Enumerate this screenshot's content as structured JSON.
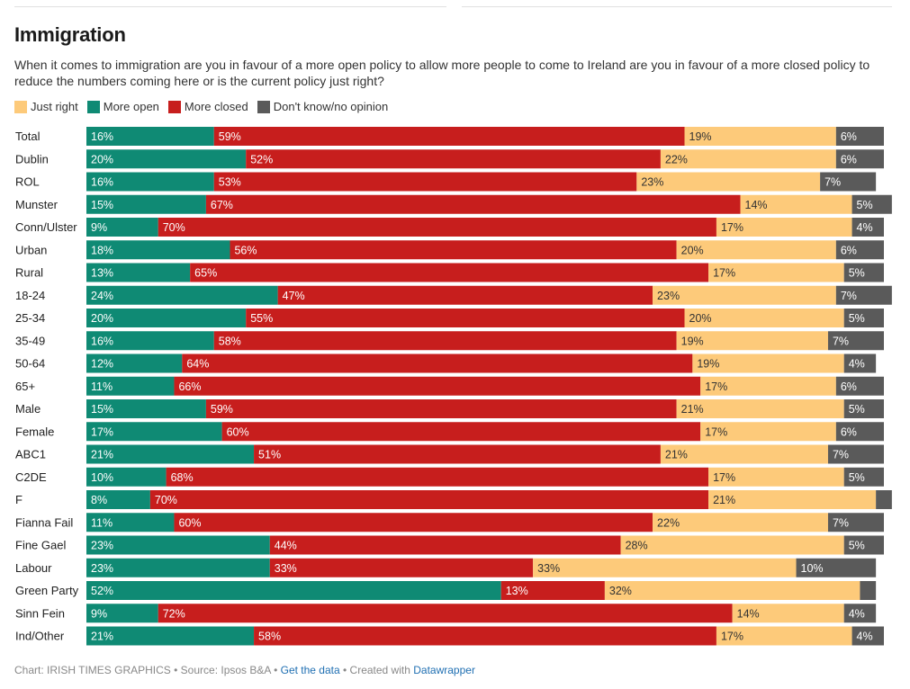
{
  "title": "Immigration",
  "subtitle": "When it comes to immigration are you in favour of a more open policy to allow more people to come to Ireland are you in favour of a more closed policy to reduce the numbers coming here or is the current policy just right?",
  "legend": [
    {
      "label": "Just right",
      "color": "#fdca7a"
    },
    {
      "label": "More open",
      "color": "#0f8a74"
    },
    {
      "label": "More closed",
      "color": "#c71e1d"
    },
    {
      "label": "Don't know/no opinion",
      "color": "#5a5a5a"
    }
  ],
  "chart_data": {
    "type": "bar",
    "orientation": "horizontal",
    "stacked": true,
    "categories": [
      "Total",
      "Dublin",
      "ROL",
      "Munster",
      "Conn/Ulster",
      "Urban",
      "Rural",
      "18-24",
      "25-34",
      "35-49",
      "50-64",
      "65+",
      "Male",
      "Female",
      "ABC1",
      "C2DE",
      "F",
      "Fianna Fail",
      "Fine Gael",
      "Labour",
      "Green Party",
      "Sinn Fein",
      "Ind/Other"
    ],
    "series": [
      {
        "name": "More open",
        "color": "#0f8a74",
        "values": [
          16,
          20,
          16,
          15,
          9,
          18,
          13,
          24,
          20,
          16,
          12,
          11,
          15,
          17,
          21,
          10,
          8,
          11,
          23,
          23,
          52,
          9,
          21
        ]
      },
      {
        "name": "More closed",
        "color": "#c71e1d",
        "values": [
          59,
          52,
          53,
          67,
          70,
          56,
          65,
          47,
          55,
          58,
          64,
          66,
          59,
          60,
          51,
          68,
          70,
          60,
          44,
          33,
          13,
          72,
          58
        ]
      },
      {
        "name": "Just right",
        "color": "#fdca7a",
        "values": [
          19,
          22,
          23,
          14,
          17,
          20,
          17,
          23,
          20,
          19,
          19,
          17,
          21,
          17,
          21,
          17,
          21,
          22,
          28,
          33,
          32,
          14,
          17
        ]
      },
      {
        "name": "Don't know/no opinion",
        "color": "#5a5a5a",
        "values": [
          6,
          6,
          7,
          5,
          4,
          6,
          5,
          7,
          5,
          7,
          4,
          6,
          5,
          6,
          7,
          5,
          2,
          7,
          5,
          10,
          2,
          4,
          4
        ],
        "hidden_labels": [
          16,
          20
        ]
      }
    ],
    "value_suffix": "%",
    "xlim": [
      0,
      100
    ]
  },
  "footer": {
    "prefix": "Chart: IRISH TIMES GRAPHICS • Source: Ipsos B&A • ",
    "get_data": "Get the data",
    "mid": " • Created with ",
    "tool": "Datawrapper"
  }
}
